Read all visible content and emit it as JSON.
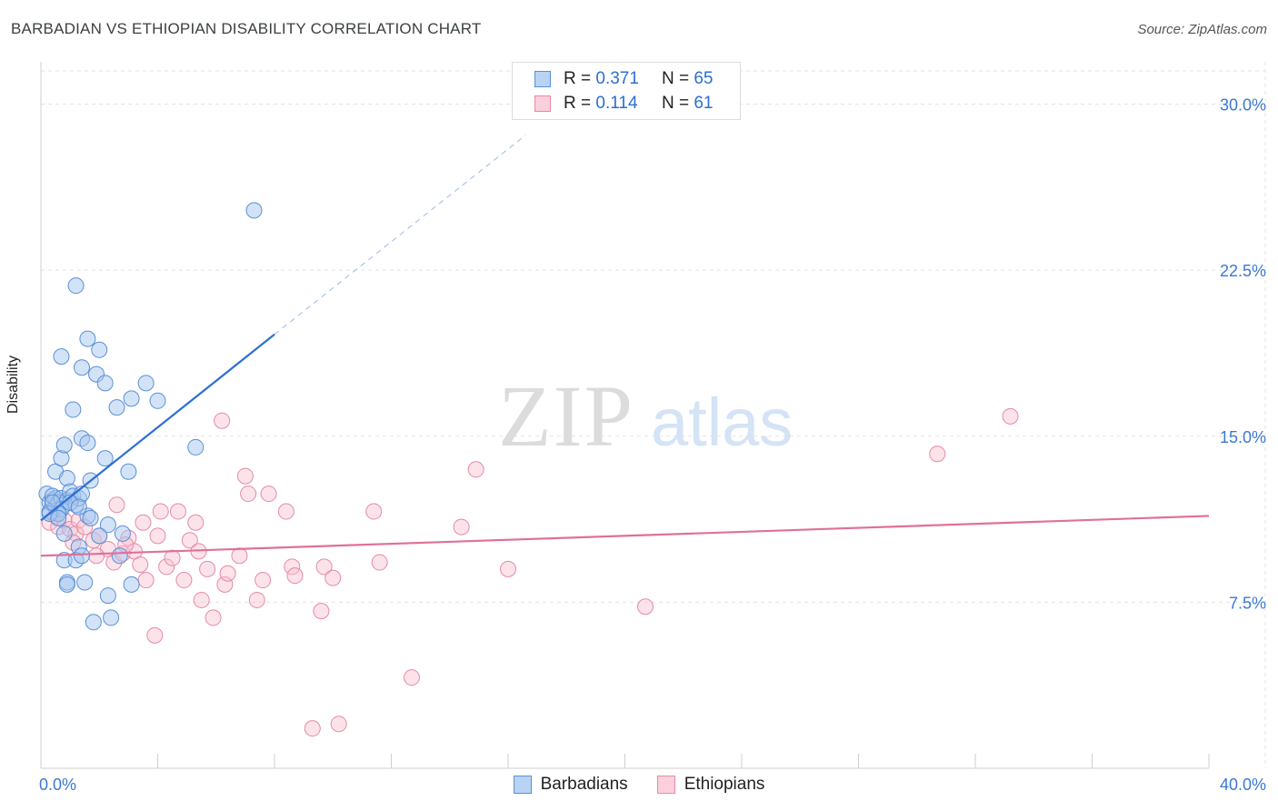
{
  "header": {
    "title": "BARBADIAN VS ETHIOPIAN DISABILITY CORRELATION CHART",
    "source": "Source: ZipAtlas.com"
  },
  "legend_top": {
    "rows": [
      {
        "r_label": "R =",
        "r_value": "0.371",
        "n_label": "N =",
        "n_value": "65"
      },
      {
        "r_label": "R =",
        "r_value": "0.114",
        "n_label": "N =",
        "n_value": "61"
      }
    ]
  },
  "legend_bottom": {
    "items": [
      {
        "label": "Barbadians"
      },
      {
        "label": "Ethiopians"
      }
    ]
  },
  "watermark": {
    "zip": "ZIP",
    "atlas": "atlas"
  },
  "colors": {
    "blue_fill": "#a8c8f0",
    "blue_stroke": "#5b8fd6",
    "blue_line": "#2d6fd1",
    "pink_fill": "#f8c0d0",
    "pink_stroke": "#e58aa6",
    "pink_line": "#e0709a",
    "axis_text": "#3b78d4",
    "grid": "#e3e3e3"
  },
  "chart_data": {
    "type": "scatter",
    "title": "BARBADIAN VS ETHIOPIAN DISABILITY CORRELATION CHART",
    "xlabel": "",
    "ylabel": "Disability",
    "xlim": [
      0,
      40
    ],
    "ylim": [
      0,
      31.5
    ],
    "x_tick_labels": [
      "0.0%",
      "40.0%"
    ],
    "y_ticks": [
      7.5,
      15.0,
      22.5,
      30.0
    ],
    "y_tick_labels": [
      "7.5%",
      "15.0%",
      "22.5%",
      "30.0%"
    ],
    "grid": true,
    "series": [
      {
        "name": "Barbadians",
        "r": 0.371,
        "n": 65,
        "trend": {
          "x0": 0,
          "y0": 11.2,
          "x1": 8,
          "y1": 19.6,
          "dashed_to_x": 16.6,
          "dashed_to_y": 28.6
        },
        "points": [
          [
            0.2,
            12.4
          ],
          [
            0.3,
            12.0
          ],
          [
            0.3,
            11.6
          ],
          [
            0.4,
            12.1
          ],
          [
            0.5,
            11.8
          ],
          [
            0.5,
            12.2
          ],
          [
            0.6,
            11.5
          ],
          [
            0.4,
            12.3
          ],
          [
            0.6,
            12.0
          ],
          [
            0.7,
            12.2
          ],
          [
            0.8,
            11.9
          ],
          [
            0.9,
            12.1
          ],
          [
            0.7,
            11.7
          ],
          [
            0.5,
            13.4
          ],
          [
            0.7,
            14.0
          ],
          [
            0.8,
            14.6
          ],
          [
            0.9,
            13.1
          ],
          [
            1.0,
            12.5
          ],
          [
            1.1,
            12.3
          ],
          [
            1.2,
            11.9
          ],
          [
            1.3,
            12.2
          ],
          [
            1.4,
            12.4
          ],
          [
            1.4,
            14.9
          ],
          [
            1.6,
            14.7
          ],
          [
            1.7,
            13.0
          ],
          [
            1.1,
            16.2
          ],
          [
            0.7,
            18.6
          ],
          [
            1.4,
            18.1
          ],
          [
            1.6,
            19.4
          ],
          [
            1.9,
            17.8
          ],
          [
            2.0,
            18.9
          ],
          [
            2.2,
            17.4
          ],
          [
            2.6,
            16.3
          ],
          [
            3.1,
            16.7
          ],
          [
            3.6,
            17.4
          ],
          [
            4.0,
            16.6
          ],
          [
            1.2,
            21.8
          ],
          [
            2.2,
            14.0
          ],
          [
            3.0,
            13.4
          ],
          [
            5.3,
            14.5
          ],
          [
            7.3,
            25.2
          ],
          [
            1.6,
            11.4
          ],
          [
            1.7,
            11.3
          ],
          [
            2.3,
            11.0
          ],
          [
            1.3,
            10.0
          ],
          [
            0.8,
            10.6
          ],
          [
            2.8,
            10.6
          ],
          [
            2.0,
            10.5
          ],
          [
            0.8,
            9.4
          ],
          [
            1.2,
            9.4
          ],
          [
            1.4,
            9.6
          ],
          [
            2.7,
            9.6
          ],
          [
            0.9,
            8.4
          ],
          [
            1.5,
            8.4
          ],
          [
            3.1,
            8.3
          ],
          [
            2.3,
            7.8
          ],
          [
            0.9,
            8.3
          ],
          [
            1.8,
            6.6
          ],
          [
            2.4,
            6.8
          ],
          [
            0.6,
            11.5
          ],
          [
            1.0,
            12.0
          ],
          [
            1.3,
            11.8
          ],
          [
            0.3,
            11.5
          ],
          [
            0.4,
            12.0
          ],
          [
            0.6,
            11.3
          ]
        ]
      },
      {
        "name": "Ethiopians",
        "r": 0.114,
        "n": 61,
        "trend": {
          "x0": 0,
          "y0": 9.6,
          "x1": 40,
          "y1": 11.4
        },
        "points": [
          [
            0.3,
            11.1
          ],
          [
            0.6,
            10.9
          ],
          [
            0.8,
            11.2
          ],
          [
            1.0,
            10.8
          ],
          [
            1.2,
            10.6
          ],
          [
            1.3,
            11.2
          ],
          [
            1.5,
            10.9
          ],
          [
            1.8,
            10.3
          ],
          [
            2.0,
            10.5
          ],
          [
            2.3,
            9.9
          ],
          [
            2.5,
            9.3
          ],
          [
            2.8,
            9.7
          ],
          [
            3.0,
            10.4
          ],
          [
            3.2,
            9.8
          ],
          [
            3.5,
            11.1
          ],
          [
            3.6,
            8.5
          ],
          [
            4.0,
            10.5
          ],
          [
            4.1,
            11.6
          ],
          [
            4.3,
            9.1
          ],
          [
            4.5,
            9.5
          ],
          [
            4.7,
            11.6
          ],
          [
            4.9,
            8.5
          ],
          [
            5.1,
            10.3
          ],
          [
            5.3,
            11.1
          ],
          [
            5.4,
            9.8
          ],
          [
            5.5,
            7.6
          ],
          [
            5.7,
            9.0
          ],
          [
            5.9,
            6.8
          ],
          [
            6.2,
            15.7
          ],
          [
            6.3,
            8.3
          ],
          [
            6.4,
            8.8
          ],
          [
            6.8,
            9.6
          ],
          [
            7.0,
            13.2
          ],
          [
            7.1,
            12.4
          ],
          [
            7.4,
            7.6
          ],
          [
            7.6,
            8.5
          ],
          [
            7.8,
            12.4
          ],
          [
            3.9,
            6.0
          ],
          [
            2.6,
            11.9
          ],
          [
            8.4,
            11.6
          ],
          [
            8.6,
            9.1
          ],
          [
            8.7,
            8.7
          ],
          [
            9.3,
            1.8
          ],
          [
            9.6,
            7.1
          ],
          [
            9.7,
            9.1
          ],
          [
            10.0,
            8.6
          ],
          [
            10.2,
            2.0
          ],
          [
            11.4,
            11.6
          ],
          [
            11.6,
            9.3
          ],
          [
            12.7,
            4.1
          ],
          [
            14.4,
            10.9
          ],
          [
            14.9,
            13.5
          ],
          [
            16.0,
            9.0
          ],
          [
            20.7,
            7.3
          ],
          [
            30.7,
            14.2
          ],
          [
            33.2,
            15.9
          ],
          [
            0.5,
            11.4
          ],
          [
            1.1,
            10.2
          ],
          [
            1.9,
            9.6
          ],
          [
            2.9,
            10.1
          ],
          [
            3.4,
            9.2
          ]
        ]
      }
    ]
  }
}
